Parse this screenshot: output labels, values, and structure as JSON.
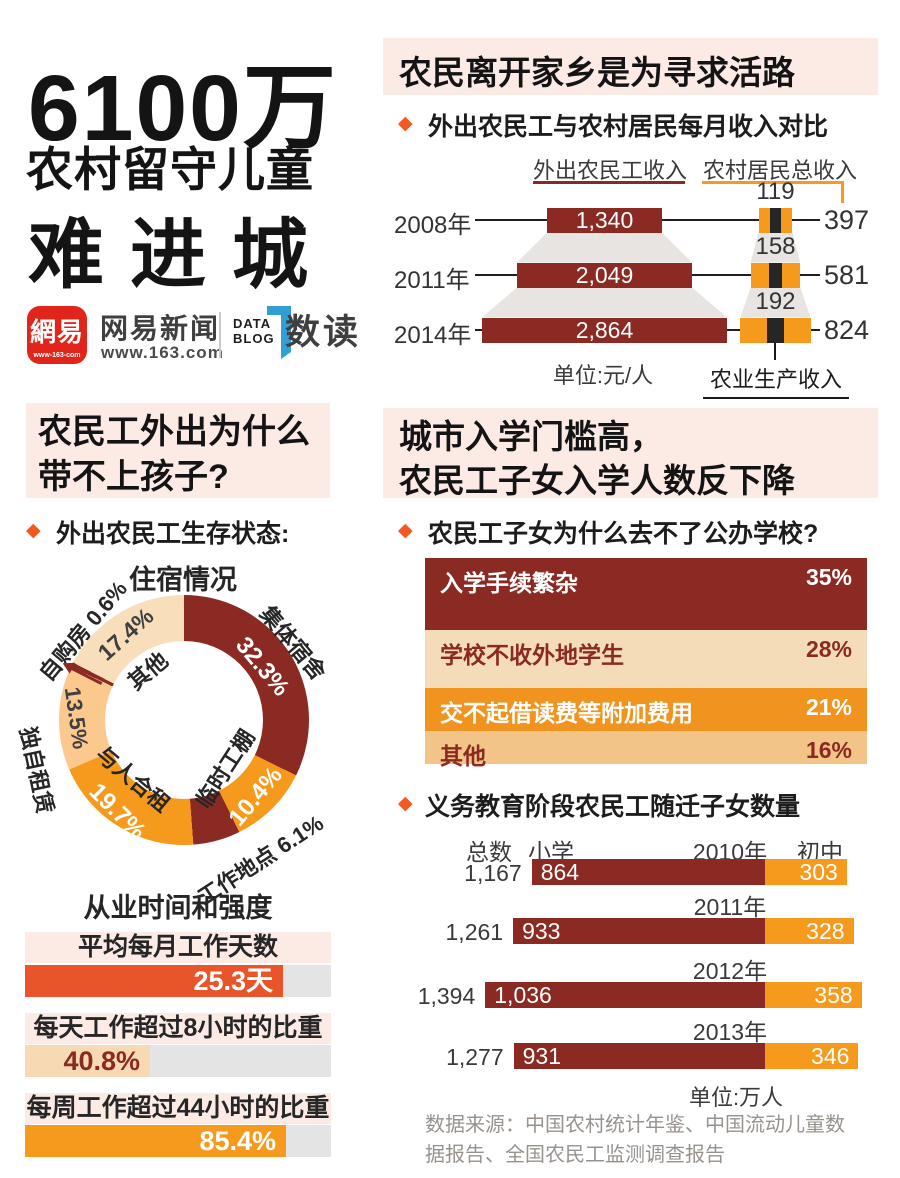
{
  "colors": {
    "maroon": "#8b2a23",
    "orange": "#f59a1c",
    "accent": "#f4581f",
    "red_bar": "#e8552b",
    "peach": "#fbc98e",
    "pale": "#f8debb",
    "cream": "#f5dcb8",
    "sand": "#f2c488",
    "pink_bg": "#fcebe4",
    "track_gray": "#e4e4e4",
    "funnel_gray": "#e8e4e1",
    "netease_red": "#e1251b",
    "blog_blue": "#2f9fd6"
  },
  "hero": {
    "line1": "6100万",
    "line2": "农村留守儿童",
    "line3": "难进城"
  },
  "brand": {
    "icon_chars": "網易",
    "icon_sub": "www-163-com",
    "name": "网易新闻",
    "url": "www.163.com",
    "datablog_line1": "DATA",
    "datablog_line2": "BLOG",
    "product": "数读"
  },
  "sections": {
    "income": {
      "header": "农民离开家乡是为寻求活路",
      "subtitle": "外出农民工与农村居民每月收入对比",
      "legend_migrant": "外出农民工收入",
      "legend_rural": "农村居民总收入",
      "unit": "单位:元/人",
      "agri_label": "农业生产收入"
    },
    "left": {
      "header_line1": "农民工外出为什么",
      "header_line2": "带不上孩子?",
      "subtitle": "外出农民工生存状态:",
      "donut_title": "住宿情况",
      "work_title": "从业时间和强度"
    },
    "school": {
      "header_line1": "城市入学门槛高，",
      "header_line2": "农民工子女入学人数反下降",
      "subtitle": "农民工子女为什么去不了公办学校?"
    },
    "children": {
      "subtitle": "义务教育阶段农民工随迁子女数量",
      "col_total": "总数",
      "col_primary": "小学",
      "col_junior": "初中",
      "unit": "单位:万人"
    },
    "source": {
      "line1": "数据来源：中国农村统计年鉴、中国流动儿童数",
      "line2": "据报告、全国农民工监测调查报告"
    }
  },
  "chart_data": [
    {
      "type": "bar",
      "name": "income-comparison",
      "title": "外出农民工与农村居民每月收入对比",
      "unit": "元/人",
      "categories": [
        "2008年",
        "2011年",
        "2014年"
      ],
      "series": [
        {
          "name": "外出农民工收入",
          "values": [
            1340,
            2049,
            2864
          ],
          "labels": [
            "1,340",
            "2,049",
            "2,864"
          ]
        },
        {
          "name": "农村居民总收入",
          "values": [
            397,
            581,
            824
          ],
          "labels": [
            "397",
            "581",
            "824"
          ]
        },
        {
          "name": "农业生产收入",
          "values": [
            119,
            158,
            192
          ],
          "labels": [
            "119",
            "158",
            "192"
          ]
        }
      ]
    },
    {
      "type": "pie",
      "name": "housing-situation",
      "title": "住宿情况",
      "segments": [
        {
          "label": "集体宿舍",
          "value": 32.3,
          "display": "32.3%",
          "color": "maroon"
        },
        {
          "label": "临时工棚",
          "value": 10.4,
          "display": "10.4%",
          "color": "orange"
        },
        {
          "label": "工作地点",
          "value": 6.1,
          "display": "6.1%",
          "color": "maroon"
        },
        {
          "label": "与人合租",
          "value": 19.7,
          "display": "19.7%",
          "color": "orange"
        },
        {
          "label": "独自租赁",
          "value": 13.5,
          "display": "13.5%",
          "color": "peach"
        },
        {
          "label": "自购房",
          "value": 0.6,
          "display": "0.6%",
          "color": "maroon"
        },
        {
          "label": "其他",
          "value": 17.4,
          "display": "17.4%",
          "color": "pale"
        }
      ]
    },
    {
      "type": "bar",
      "name": "school-reasons",
      "title": "农民工子女为什么去不了公办学校?",
      "categories": [
        "入学手续繁杂",
        "学校不收外地学生",
        "交不起借读费等附加费用",
        "其他"
      ],
      "values": [
        35,
        28,
        21,
        16
      ],
      "displays": [
        "35%",
        "28%",
        "21%",
        "16%"
      ]
    },
    {
      "type": "bar",
      "name": "work-intensity",
      "title": "从业时间和强度",
      "items": [
        {
          "label": "平均每月工作天数",
          "value": 25.3,
          "max": 30,
          "display": "25.3天"
        },
        {
          "label": "每天工作超过8小时的比重",
          "value": 40.8,
          "max": 100,
          "display": "40.8%"
        },
        {
          "label": "每周工作超过44小时的比重",
          "value": 85.4,
          "max": 100,
          "display": "85.4%"
        }
      ]
    },
    {
      "type": "bar",
      "name": "migrant-children-by-year",
      "title": "义务教育阶段农民工随迁子女数量",
      "unit": "万人",
      "years": [
        "2010年",
        "2011年",
        "2012年",
        "2013年"
      ],
      "totals": [
        1167,
        1261,
        1394,
        1277
      ],
      "total_labels": [
        "1,167",
        "1,261",
        "1,394",
        "1,277"
      ],
      "primary_school": [
        864,
        933,
        1036,
        931
      ],
      "primary_labels": [
        "864",
        "933",
        "1,036",
        "931"
      ],
      "junior_school": [
        303,
        328,
        358,
        346
      ],
      "junior_labels": [
        "303",
        "328",
        "358",
        "346"
      ]
    }
  ]
}
